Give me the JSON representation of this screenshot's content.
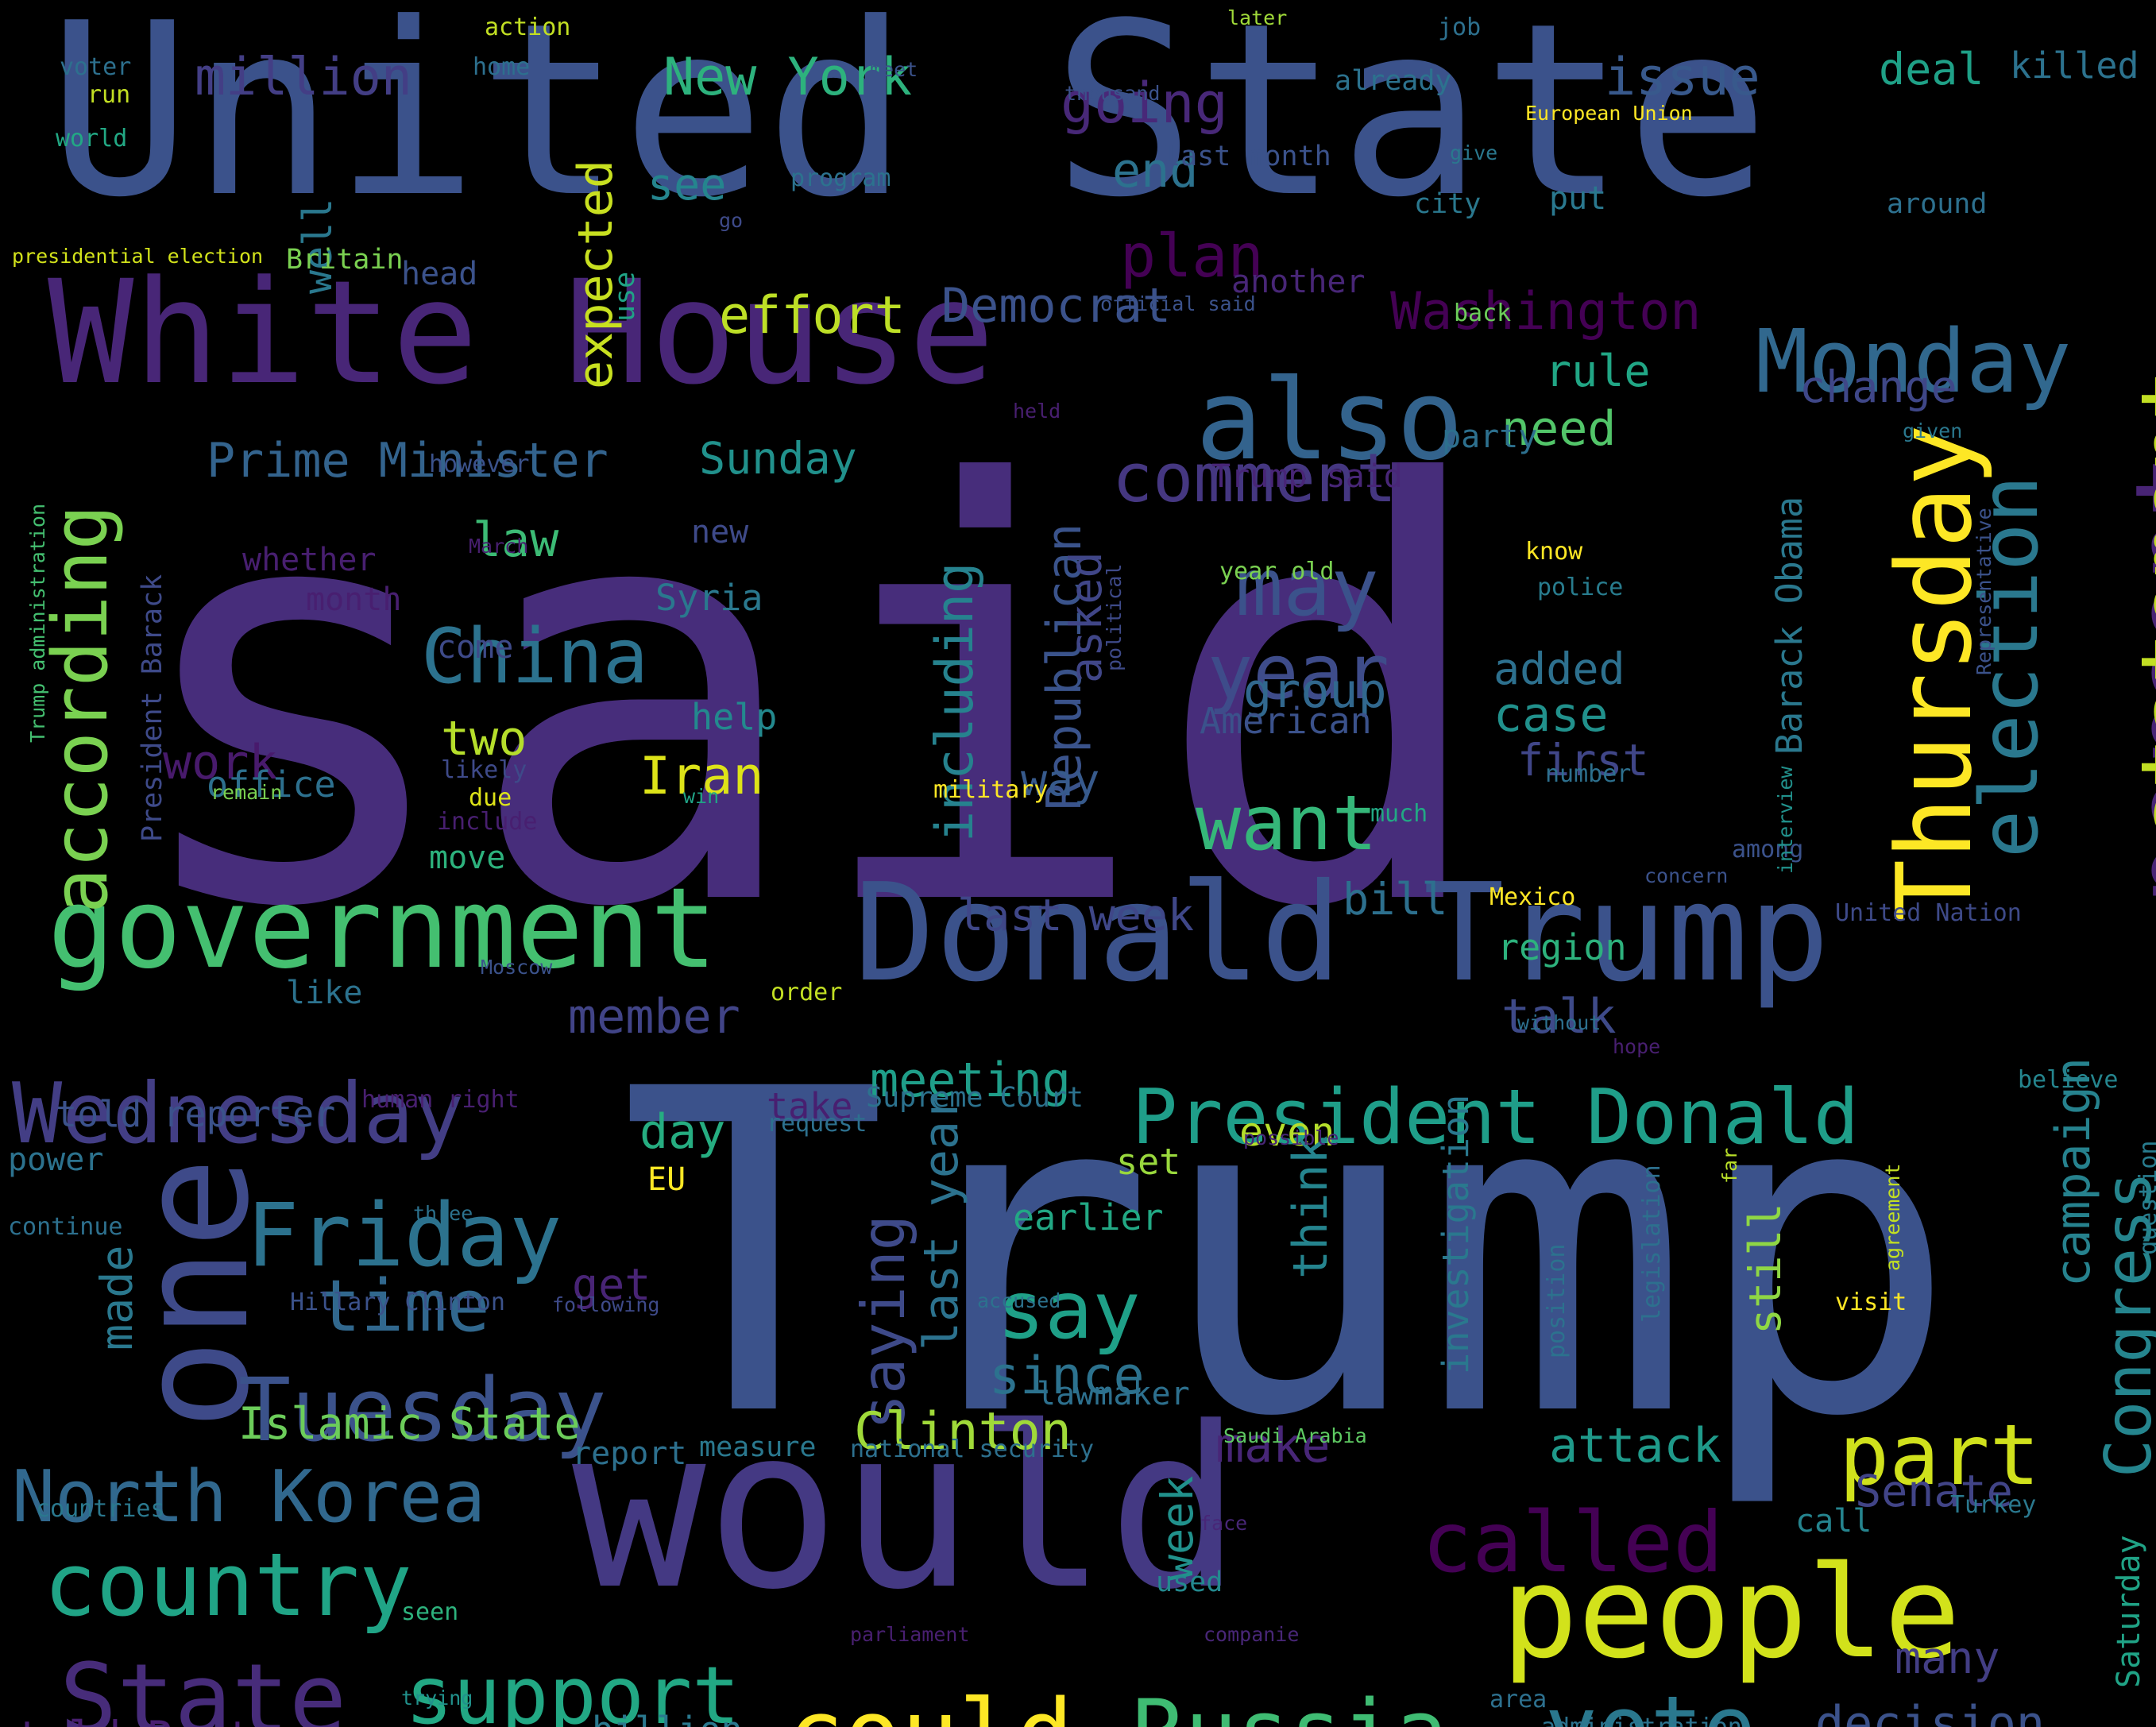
{
  "title": "Word cloud",
  "background": "#000000",
  "words": [
    {
      "id": "w1",
      "text": "said",
      "color": "#472d7b"
    },
    {
      "id": "w2",
      "text": "Trump",
      "color": "#3b528b"
    },
    {
      "id": "w3",
      "text": "United State",
      "color": "#3b528b"
    },
    {
      "id": "w4",
      "text": "would",
      "color": "#443983"
    },
    {
      "id": "w5",
      "text": "White House",
      "color": "#482677"
    },
    {
      "id": "w6",
      "text": "Donald Trump",
      "color": "#3b528b"
    },
    {
      "id": "w7",
      "text": "one",
      "color": "#3e4a89"
    },
    {
      "id": "w8",
      "text": "government",
      "color": "#44bf70"
    },
    {
      "id": "w9",
      "text": "people",
      "color": "#d2e21b"
    },
    {
      "id": "w10",
      "text": "also",
      "color": "#33638d"
    },
    {
      "id": "w11",
      "text": "Monday",
      "color": "#31688e"
    },
    {
      "id": "w12",
      "text": "percent",
      "color": "#482475"
    },
    {
      "id": "w13",
      "text": "Thursday",
      "color": "#fde725"
    },
    {
      "id": "w14",
      "text": "statement",
      "color": "#c2df23"
    },
    {
      "id": "w15",
      "text": "election",
      "color": "#2a788e"
    },
    {
      "id": "w16",
      "text": "Tuesday",
      "color": "#3b528b"
    },
    {
      "id": "w17",
      "text": "Wednesday",
      "color": "#433e85"
    },
    {
      "id": "w18",
      "text": "country",
      "color": "#20a486"
    },
    {
      "id": "w19",
      "text": "President Donald",
      "color": "#1f9e89"
    },
    {
      "id": "w20",
      "text": "Friday",
      "color": "#2c728e"
    },
    {
      "id": "w21",
      "text": "State",
      "color": "#472c7a"
    },
    {
      "id": "w22",
      "text": "North Korea",
      "color": "#31688e"
    },
    {
      "id": "w23",
      "text": "could",
      "color": "#fde725"
    },
    {
      "id": "w24",
      "text": "Russia",
      "color": "#3fbc73"
    },
    {
      "id": "w25",
      "text": "vote",
      "color": "#2a788e"
    },
    {
      "id": "w26",
      "text": "support",
      "color": "#22a884"
    },
    {
      "id": "w27",
      "text": "called",
      "color": "#440154"
    },
    {
      "id": "w28",
      "text": "part",
      "color": "#d0e11c"
    },
    {
      "id": "w29",
      "text": "according",
      "color": "#7ad151"
    },
    {
      "id": "w30",
      "text": "comment",
      "color": "#453781"
    },
    {
      "id": "w31",
      "text": "may",
      "color": "#3b528b"
    },
    {
      "id": "w32",
      "text": "China",
      "color": "#2c728e"
    },
    {
      "id": "w33",
      "text": "year",
      "color": "#3e4c8a"
    },
    {
      "id": "w34",
      "text": "want",
      "color": "#35b779"
    },
    {
      "id": "w35",
      "text": "say",
      "color": "#1fa088"
    },
    {
      "id": "w36",
      "text": "time",
      "color": "#31688e"
    },
    {
      "id": "w37",
      "text": "Congress",
      "color": "#25858e"
    },
    {
      "id": "w38",
      "text": "Washington",
      "color": "#440154"
    },
    {
      "id": "w39",
      "text": "New York",
      "color": "#2db27d"
    },
    {
      "id": "w40",
      "text": "million",
      "color": "#433e85"
    },
    {
      "id": "w41",
      "text": "going",
      "color": "#482878"
    },
    {
      "id": "w42",
      "text": "issue",
      "color": "#38598c"
    },
    {
      "id": "w43",
      "text": "deal",
      "color": "#1fa187"
    },
    {
      "id": "w44",
      "text": "killed",
      "color": "#2c728e"
    },
    {
      "id": "w45",
      "text": "end",
      "color": "#2c728e"
    },
    {
      "id": "w46",
      "text": "plan",
      "color": "#440154"
    },
    {
      "id": "w47",
      "text": "see",
      "color": "#25858e"
    },
    {
      "id": "w48",
      "text": "effort",
      "color": "#bddf26"
    },
    {
      "id": "w49",
      "text": "Democrat",
      "color": "#3b528b"
    },
    {
      "id": "w50",
      "text": "expected",
      "color": "#c8e020"
    },
    {
      "id": "w51",
      "text": "well",
      "color": "#2a788e"
    },
    {
      "id": "w52",
      "text": "Prime Minister",
      "color": "#33638d"
    },
    {
      "id": "w53",
      "text": "Sunday",
      "color": "#21918c"
    },
    {
      "id": "w54",
      "text": "including",
      "color": "#26828e"
    },
    {
      "id": "w55",
      "text": "Republican",
      "color": "#3a538b"
    },
    {
      "id": "w56",
      "text": "asked",
      "color": "#404688"
    },
    {
      "id": "w57",
      "text": "Barack Obama",
      "color": "#2a788e"
    },
    {
      "id": "w58",
      "text": "rule",
      "color": "#21a685"
    },
    {
      "id": "w59",
      "text": "need",
      "color": "#52c569"
    },
    {
      "id": "w60",
      "text": "change",
      "color": "#3f4788"
    },
    {
      "id": "w61",
      "text": "law",
      "color": "#3cbb75"
    },
    {
      "id": "w62",
      "text": "group",
      "color": "#31688e"
    },
    {
      "id": "w63",
      "text": "added",
      "color": "#2d708e"
    },
    {
      "id": "w64",
      "text": "case",
      "color": "#21918c"
    },
    {
      "id": "w65",
      "text": "first",
      "color": "#404688"
    },
    {
      "id": "w66",
      "text": "two",
      "color": "#b5de2b"
    },
    {
      "id": "w67",
      "text": "Iran",
      "color": "#dde318"
    },
    {
      "id": "w68",
      "text": "work",
      "color": "#481a6c"
    },
    {
      "id": "w69",
      "text": "way",
      "color": "#375a8c"
    },
    {
      "id": "w70",
      "text": "American",
      "color": "#3b528b"
    },
    {
      "id": "w71",
      "text": "Syria",
      "color": "#2a788e"
    },
    {
      "id": "w72",
      "text": "help",
      "color": "#23898e"
    },
    {
      "id": "w73",
      "text": "office",
      "color": "#2d708e"
    },
    {
      "id": "w74",
      "text": "last week",
      "color": "#3f4788"
    },
    {
      "id": "w75",
      "text": "bill",
      "color": "#2d708e"
    },
    {
      "id": "w76",
      "text": "meeting",
      "color": "#1f9e89"
    },
    {
      "id": "w77",
      "text": "member",
      "color": "#414487"
    },
    {
      "id": "w78",
      "text": "talk",
      "color": "#3e4a89"
    },
    {
      "id": "w79",
      "text": "region",
      "color": "#2db27d"
    },
    {
      "id": "w80",
      "text": "day",
      "color": "#26ad81"
    },
    {
      "id": "w81",
      "text": "told reporter",
      "color": "#3b528b"
    },
    {
      "id": "w82",
      "text": "saying",
      "color": "#3e4a89"
    },
    {
      "id": "w83",
      "text": "last year",
      "color": "#2c728e"
    },
    {
      "id": "w84",
      "text": "even",
      "color": "#b5de2b"
    },
    {
      "id": "w85",
      "text": "take",
      "color": "#481f70"
    },
    {
      "id": "w86",
      "text": "Supreme Court",
      "color": "#2c728e"
    },
    {
      "id": "w87",
      "text": "set",
      "color": "#99d83d"
    },
    {
      "id": "w88",
      "text": "earlier",
      "color": "#22a884"
    },
    {
      "id": "w89",
      "text": "think",
      "color": "#25848e"
    },
    {
      "id": "w90",
      "text": "investigation",
      "color": "#2a788e"
    },
    {
      "id": "w91",
      "text": "campaign",
      "color": "#26828e"
    },
    {
      "id": "w92",
      "text": "since",
      "color": "#2c728e"
    },
    {
      "id": "w93",
      "text": "get",
      "color": "#482475"
    },
    {
      "id": "w94",
      "text": "made",
      "color": "#2a788e"
    },
    {
      "id": "w95",
      "text": "Islamic State",
      "color": "#6ccd5a"
    },
    {
      "id": "w96",
      "text": "Clinton",
      "color": "#a0da39"
    },
    {
      "id": "w97",
      "text": "attack",
      "color": "#1f9a8a"
    },
    {
      "id": "w98",
      "text": "make",
      "color": "#482677"
    },
    {
      "id": "w99",
      "text": "lawmaker",
      "color": "#2d708e"
    },
    {
      "id": "w100",
      "text": "Senate",
      "color": "#414487"
    },
    {
      "id": "w101",
      "text": "still",
      "color": "#8fd744"
    },
    {
      "id": "w102",
      "text": "week",
      "color": "#21918c"
    },
    {
      "id": "w103",
      "text": "many",
      "color": "#433e85"
    },
    {
      "id": "w104",
      "text": "decision",
      "color": "#3b528b"
    },
    {
      "id": "w105",
      "text": "told Reuters",
      "color": "#481f70"
    },
    {
      "id": "w106",
      "text": "billion",
      "color": "#2a788e"
    },
    {
      "id": "w107",
      "text": "report",
      "color": "#2d708e"
    },
    {
      "id": "w108",
      "text": "measure",
      "color": "#2a788e"
    },
    {
      "id": "w109",
      "text": "national security",
      "color": "#2d708e"
    },
    {
      "id": "w110",
      "text": "Saturday",
      "color": "#20a386"
    },
    {
      "id": "w111",
      "text": "call",
      "color": "#25848e"
    },
    {
      "id": "w112",
      "text": "Turkey",
      "color": "#2a788e"
    },
    {
      "id": "w113",
      "text": "used",
      "color": "#23898e"
    },
    {
      "id": "w114",
      "text": "area",
      "color": "#2d708e"
    },
    {
      "id": "w115",
      "text": "administration",
      "color": "#2c728e"
    },
    {
      "id": "w116",
      "text": "countries",
      "color": "#2a788e"
    },
    {
      "id": "w117",
      "text": "seen",
      "color": "#2db27d"
    },
    {
      "id": "w118",
      "text": "trying",
      "color": "#21918c"
    },
    {
      "id": "w119",
      "text": "parliament",
      "color": "#481f70"
    },
    {
      "id": "w120",
      "text": "companie",
      "color": "#482677"
    },
    {
      "id": "w121",
      "text": "face",
      "color": "#482677"
    },
    {
      "id": "w122",
      "text": "Hillary Clinton",
      "color": "#3b528b"
    },
    {
      "id": "w123",
      "text": "following",
      "color": "#3e4a89"
    },
    {
      "id": "w124",
      "text": "accused",
      "color": "#2c728e"
    },
    {
      "id": "w125",
      "text": "visit",
      "color": "#fde725"
    },
    {
      "id": "w126",
      "text": "agreement",
      "color": "#c2df23"
    },
    {
      "id": "w127",
      "text": "position",
      "color": "#2c728e"
    },
    {
      "id": "w128",
      "text": "legislation",
      "color": "#2d708e"
    },
    {
      "id": "w129",
      "text": "far",
      "color": "#b8de29"
    },
    {
      "id": "w130",
      "text": "question",
      "color": "#287c8e"
    },
    {
      "id": "w131",
      "text": "continue",
      "color": "#2d708e"
    },
    {
      "id": "w132",
      "text": "three",
      "color": "#2c728e"
    },
    {
      "id": "w133",
      "text": "power",
      "color": "#2c728e"
    },
    {
      "id": "w134",
      "text": "human right",
      "color": "#481f70"
    },
    {
      "id": "w135",
      "text": "request",
      "color": "#2d708e"
    },
    {
      "id": "w136",
      "text": "EU",
      "color": "#fde725"
    },
    {
      "id": "w137",
      "text": "possible",
      "color": "#482677"
    },
    {
      "id": "w138",
      "text": "believe",
      "color": "#25858e"
    },
    {
      "id": "w139",
      "text": "hope",
      "color": "#481f70"
    },
    {
      "id": "w140",
      "text": "without",
      "color": "#2d708e"
    },
    {
      "id": "w141",
      "text": "United Nation",
      "color": "#3e4a89"
    },
    {
      "id": "w142",
      "text": "concern",
      "color": "#3b528b"
    },
    {
      "id": "w143",
      "text": "among",
      "color": "#3b528b"
    },
    {
      "id": "w144",
      "text": "Mexico",
      "color": "#fde725"
    },
    {
      "id": "w145",
      "text": "order",
      "color": "#c2df23"
    },
    {
      "id": "w146",
      "text": "like",
      "color": "#2c728e"
    },
    {
      "id": "w147",
      "text": "Moscow",
      "color": "#3b528b"
    },
    {
      "id": "w148",
      "text": "move",
      "color": "#2db27d"
    },
    {
      "id": "w149",
      "text": "include",
      "color": "#481f70"
    },
    {
      "id": "w150",
      "text": "due",
      "color": "#dde318"
    },
    {
      "id": "w151",
      "text": "military",
      "color": "#fde725"
    },
    {
      "id": "w152",
      "text": "much",
      "color": "#22a884"
    },
    {
      "id": "w153",
      "text": "win",
      "color": "#20a386"
    },
    {
      "id": "w154",
      "text": "likely",
      "color": "#3e4a89"
    },
    {
      "id": "w155",
      "text": "remain",
      "color": "#7ad151"
    },
    {
      "id": "w156",
      "text": "President Barack",
      "color": "#3e4a89"
    },
    {
      "id": "w157",
      "text": "Trump administration",
      "color": "#44bf70"
    },
    {
      "id": "w158",
      "text": "come",
      "color": "#3e4a89"
    },
    {
      "id": "w159",
      "text": "month",
      "color": "#481f70"
    },
    {
      "id": "w160",
      "text": "whether",
      "color": "#481f70"
    },
    {
      "id": "w161",
      "text": "March",
      "color": "#481f70"
    },
    {
      "id": "w162",
      "text": "new",
      "color": "#3e4a89"
    },
    {
      "id": "w163",
      "text": "however",
      "color": "#3b528b"
    },
    {
      "id": "w164",
      "text": "head",
      "color": "#3b528b"
    },
    {
      "id": "w165",
      "text": "Britain",
      "color": "#7ad151"
    },
    {
      "id": "w166",
      "text": "presidential election",
      "color": "#d2e21b"
    },
    {
      "id": "w167",
      "text": "use",
      "color": "#20a386"
    },
    {
      "id": "w168",
      "text": "official said",
      "color": "#3b528b"
    },
    {
      "id": "w169",
      "text": "another",
      "color": "#482677"
    },
    {
      "id": "w170",
      "text": "back",
      "color": "#6ccd5a"
    },
    {
      "id": "w171",
      "text": "held",
      "color": "#481f70"
    },
    {
      "id": "w172",
      "text": "party",
      "color": "#2d708e"
    },
    {
      "id": "w173",
      "text": "Trump said",
      "color": "#482677"
    },
    {
      "id": "w174",
      "text": "know",
      "color": "#fde725"
    },
    {
      "id": "w175",
      "text": "police",
      "color": "#287c8e"
    },
    {
      "id": "w176",
      "text": "year old",
      "color": "#7ad151"
    },
    {
      "id": "w177",
      "text": "political",
      "color": "#3e4a89"
    },
    {
      "id": "w178",
      "text": "given",
      "color": "#2a788e"
    },
    {
      "id": "w179",
      "text": "Representative",
      "color": "#3b528b"
    },
    {
      "id": "w180",
      "text": "interview",
      "color": "#21918c"
    },
    {
      "id": "w181",
      "text": "number",
      "color": "#2d708e"
    },
    {
      "id": "w182",
      "text": "put",
      "color": "#2a788e"
    },
    {
      "id": "w183",
      "text": "around",
      "color": "#2d708e"
    },
    {
      "id": "w184",
      "text": "city",
      "color": "#2a788e"
    },
    {
      "id": "w185",
      "text": "give",
      "color": "#2a788e"
    },
    {
      "id": "w186",
      "text": "European Union",
      "color": "#fde725"
    },
    {
      "id": "w187",
      "text": "last month",
      "color": "#3b528b"
    },
    {
      "id": "w188",
      "text": "program",
      "color": "#2c728e"
    },
    {
      "id": "w189",
      "text": "go",
      "color": "#3e4a89"
    },
    {
      "id": "w190",
      "text": "thousand",
      "color": "#3b528b"
    },
    {
      "id": "w191",
      "text": "meet",
      "color": "#3b528b"
    },
    {
      "id": "w192",
      "text": "job",
      "color": "#2d708e"
    },
    {
      "id": "w193",
      "text": "already",
      "color": "#2c728e"
    },
    {
      "id": "w194",
      "text": "later",
      "color": "#a0da39"
    },
    {
      "id": "w195",
      "text": "action",
      "color": "#c2df23"
    },
    {
      "id": "w196",
      "text": "home",
      "color": "#2d708e"
    },
    {
      "id": "w197",
      "text": "voter",
      "color": "#2d708e"
    },
    {
      "id": "w198",
      "text": "run",
      "color": "#c2df23"
    },
    {
      "id": "w199",
      "text": "world",
      "color": "#22a884"
    },
    {
      "id": "w200",
      "text": "Saudi Arabia",
      "color": "#5ec962"
    }
  ]
}
